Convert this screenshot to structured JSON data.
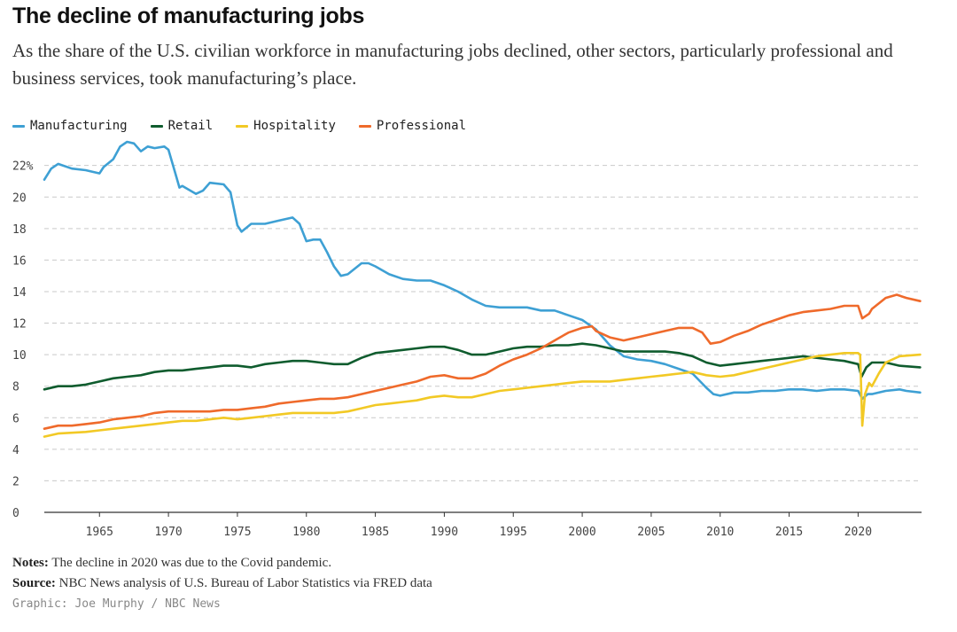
{
  "header": {
    "title": "The decline of manufacturing jobs",
    "subtitle": "As the share of the U.S. civilian workforce in manufacturing jobs declined, other sectors, particularly professional and business services, took manufacturing’s place."
  },
  "footer": {
    "notes_label": "Notes:",
    "notes_text": "The decline in 2020 was due to the Covid pandemic.",
    "source_label": "Source:",
    "source_text": "NBC News analysis of U.S. Bureau of Labor Statistics via FRED data",
    "credit": "Graphic: Joe Murphy / NBC News"
  },
  "chart_data": {
    "type": "line",
    "title": "The decline of manufacturing jobs",
    "xlabel": "",
    "ylabel": "",
    "xlim": [
      1961,
      2024.6
    ],
    "ylim": [
      0,
      23.5
    ],
    "x_ticks": [
      1965,
      1970,
      1975,
      1980,
      1985,
      1990,
      1995,
      2000,
      2005,
      2010,
      2015,
      2020
    ],
    "y_ticks": [
      0,
      2,
      4,
      6,
      8,
      10,
      12,
      14,
      16,
      18,
      20,
      22
    ],
    "y_tick_labels": [
      "0",
      "2",
      "4",
      "6",
      "8",
      "10",
      "12",
      "14",
      "16",
      "18",
      "20",
      "22%"
    ],
    "grid": "horizontal dashed",
    "legend_placement": "top-left",
    "series": [
      {
        "name": "Manufacturing",
        "color": "#3ea0d4",
        "points": [
          [
            1961.0,
            21.1
          ],
          [
            1961.5,
            21.8
          ],
          [
            1962.0,
            22.1
          ],
          [
            1963.0,
            21.8
          ],
          [
            1964.0,
            21.7
          ],
          [
            1965.0,
            21.5
          ],
          [
            1965.3,
            21.9
          ],
          [
            1966.0,
            22.4
          ],
          [
            1966.5,
            23.2
          ],
          [
            1967.0,
            23.5
          ],
          [
            1967.5,
            23.4
          ],
          [
            1968.0,
            22.9
          ],
          [
            1968.5,
            23.2
          ],
          [
            1969.0,
            23.1
          ],
          [
            1969.7,
            23.2
          ],
          [
            1970.0,
            23.0
          ],
          [
            1970.5,
            21.5
          ],
          [
            1970.8,
            20.6
          ],
          [
            1971.0,
            20.7
          ],
          [
            1972.0,
            20.2
          ],
          [
            1972.5,
            20.4
          ],
          [
            1973.0,
            20.9
          ],
          [
            1974.0,
            20.8
          ],
          [
            1974.5,
            20.3
          ],
          [
            1975.0,
            18.2
          ],
          [
            1975.3,
            17.8
          ],
          [
            1976.0,
            18.3
          ],
          [
            1977.0,
            18.3
          ],
          [
            1978.0,
            18.5
          ],
          [
            1979.0,
            18.7
          ],
          [
            1979.5,
            18.3
          ],
          [
            1980.0,
            17.2
          ],
          [
            1980.5,
            17.3
          ],
          [
            1981.0,
            17.3
          ],
          [
            1981.5,
            16.5
          ],
          [
            1982.0,
            15.6
          ],
          [
            1982.5,
            15.0
          ],
          [
            1983.0,
            15.1
          ],
          [
            1984.0,
            15.8
          ],
          [
            1984.5,
            15.8
          ],
          [
            1985.0,
            15.6
          ],
          [
            1986.0,
            15.1
          ],
          [
            1987.0,
            14.8
          ],
          [
            1988.0,
            14.7
          ],
          [
            1989.0,
            14.7
          ],
          [
            1990.0,
            14.4
          ],
          [
            1991.0,
            14.0
          ],
          [
            1992.0,
            13.5
          ],
          [
            1993.0,
            13.1
          ],
          [
            1994.0,
            13.0
          ],
          [
            1995.0,
            13.0
          ],
          [
            1996.0,
            13.0
          ],
          [
            1997.0,
            12.8
          ],
          [
            1998.0,
            12.8
          ],
          [
            1999.0,
            12.5
          ],
          [
            2000.0,
            12.2
          ],
          [
            2001.0,
            11.6
          ],
          [
            2002.0,
            10.6
          ],
          [
            2003.0,
            9.9
          ],
          [
            2004.0,
            9.7
          ],
          [
            2005.0,
            9.6
          ],
          [
            2006.0,
            9.4
          ],
          [
            2007.0,
            9.1
          ],
          [
            2008.0,
            8.8
          ],
          [
            2009.0,
            7.9
          ],
          [
            2009.5,
            7.5
          ],
          [
            2010.0,
            7.4
          ],
          [
            2011.0,
            7.6
          ],
          [
            2012.0,
            7.6
          ],
          [
            2013.0,
            7.7
          ],
          [
            2014.0,
            7.7
          ],
          [
            2015.0,
            7.8
          ],
          [
            2016.0,
            7.8
          ],
          [
            2017.0,
            7.7
          ],
          [
            2018.0,
            7.8
          ],
          [
            2019.0,
            7.8
          ],
          [
            2020.0,
            7.7
          ],
          [
            2020.3,
            7.2
          ],
          [
            2020.7,
            7.5
          ],
          [
            2021.0,
            7.5
          ],
          [
            2022.0,
            7.7
          ],
          [
            2023.0,
            7.8
          ],
          [
            2023.5,
            7.7
          ],
          [
            2024.5,
            7.6
          ]
        ]
      },
      {
        "name": "Retail",
        "color": "#0f5c2e",
        "points": [
          [
            1961.0,
            7.8
          ],
          [
            1962.0,
            8.0
          ],
          [
            1963.0,
            8.0
          ],
          [
            1964.0,
            8.1
          ],
          [
            1965.0,
            8.3
          ],
          [
            1966.0,
            8.5
          ],
          [
            1967.0,
            8.6
          ],
          [
            1968.0,
            8.7
          ],
          [
            1969.0,
            8.9
          ],
          [
            1970.0,
            9.0
          ],
          [
            1971.0,
            9.0
          ],
          [
            1972.0,
            9.1
          ],
          [
            1973.0,
            9.2
          ],
          [
            1974.0,
            9.3
          ],
          [
            1975.0,
            9.3
          ],
          [
            1976.0,
            9.2
          ],
          [
            1977.0,
            9.4
          ],
          [
            1978.0,
            9.5
          ],
          [
            1979.0,
            9.6
          ],
          [
            1980.0,
            9.6
          ],
          [
            1981.0,
            9.5
          ],
          [
            1982.0,
            9.4
          ],
          [
            1983.0,
            9.4
          ],
          [
            1984.0,
            9.8
          ],
          [
            1985.0,
            10.1
          ],
          [
            1986.0,
            10.2
          ],
          [
            1987.0,
            10.3
          ],
          [
            1988.0,
            10.4
          ],
          [
            1989.0,
            10.5
          ],
          [
            1990.0,
            10.5
          ],
          [
            1991.0,
            10.3
          ],
          [
            1992.0,
            10.0
          ],
          [
            1993.0,
            10.0
          ],
          [
            1994.0,
            10.2
          ],
          [
            1995.0,
            10.4
          ],
          [
            1996.0,
            10.5
          ],
          [
            1997.0,
            10.5
          ],
          [
            1998.0,
            10.6
          ],
          [
            1999.0,
            10.6
          ],
          [
            2000.0,
            10.7
          ],
          [
            2001.0,
            10.6
          ],
          [
            2002.0,
            10.4
          ],
          [
            2003.0,
            10.2
          ],
          [
            2004.0,
            10.2
          ],
          [
            2005.0,
            10.2
          ],
          [
            2006.0,
            10.2
          ],
          [
            2007.0,
            10.1
          ],
          [
            2008.0,
            9.9
          ],
          [
            2009.0,
            9.5
          ],
          [
            2010.0,
            9.3
          ],
          [
            2011.0,
            9.4
          ],
          [
            2012.0,
            9.5
          ],
          [
            2013.0,
            9.6
          ],
          [
            2014.0,
            9.7
          ],
          [
            2015.0,
            9.8
          ],
          [
            2016.0,
            9.9
          ],
          [
            2017.0,
            9.8
          ],
          [
            2018.0,
            9.7
          ],
          [
            2019.0,
            9.6
          ],
          [
            2020.0,
            9.4
          ],
          [
            2020.25,
            8.6
          ],
          [
            2020.6,
            9.2
          ],
          [
            2021.0,
            9.5
          ],
          [
            2022.0,
            9.5
          ],
          [
            2023.0,
            9.3
          ],
          [
            2024.5,
            9.2
          ]
        ]
      },
      {
        "name": "Hospitality",
        "color": "#f2c925",
        "points": [
          [
            1961.0,
            4.8
          ],
          [
            1962.0,
            5.0
          ],
          [
            1964.0,
            5.1
          ],
          [
            1965.0,
            5.2
          ],
          [
            1966.0,
            5.3
          ],
          [
            1967.0,
            5.4
          ],
          [
            1968.0,
            5.5
          ],
          [
            1969.0,
            5.6
          ],
          [
            1970.0,
            5.7
          ],
          [
            1971.0,
            5.8
          ],
          [
            1972.0,
            5.8
          ],
          [
            1973.0,
            5.9
          ],
          [
            1974.0,
            6.0
          ],
          [
            1975.0,
            5.9
          ],
          [
            1976.0,
            6.0
          ],
          [
            1977.0,
            6.1
          ],
          [
            1978.0,
            6.2
          ],
          [
            1979.0,
            6.3
          ],
          [
            1980.0,
            6.3
          ],
          [
            1981.0,
            6.3
          ],
          [
            1982.0,
            6.3
          ],
          [
            1983.0,
            6.4
          ],
          [
            1984.0,
            6.6
          ],
          [
            1985.0,
            6.8
          ],
          [
            1986.0,
            6.9
          ],
          [
            1987.0,
            7.0
          ],
          [
            1988.0,
            7.1
          ],
          [
            1989.0,
            7.3
          ],
          [
            1990.0,
            7.4
          ],
          [
            1991.0,
            7.3
          ],
          [
            1992.0,
            7.3
          ],
          [
            1993.0,
            7.5
          ],
          [
            1994.0,
            7.7
          ],
          [
            1995.0,
            7.8
          ],
          [
            1996.0,
            7.9
          ],
          [
            1997.0,
            8.0
          ],
          [
            1998.0,
            8.1
          ],
          [
            1999.0,
            8.2
          ],
          [
            2000.0,
            8.3
          ],
          [
            2001.0,
            8.3
          ],
          [
            2002.0,
            8.3
          ],
          [
            2003.0,
            8.4
          ],
          [
            2004.0,
            8.5
          ],
          [
            2005.0,
            8.6
          ],
          [
            2006.0,
            8.7
          ],
          [
            2007.0,
            8.8
          ],
          [
            2008.0,
            8.9
          ],
          [
            2009.0,
            8.7
          ],
          [
            2010.0,
            8.6
          ],
          [
            2011.0,
            8.7
          ],
          [
            2012.0,
            8.9
          ],
          [
            2013.0,
            9.1
          ],
          [
            2014.0,
            9.3
          ],
          [
            2015.0,
            9.5
          ],
          [
            2016.0,
            9.7
          ],
          [
            2017.0,
            9.9
          ],
          [
            2018.0,
            10.0
          ],
          [
            2019.0,
            10.1
          ],
          [
            2020.0,
            10.1
          ],
          [
            2020.15,
            10.0
          ],
          [
            2020.3,
            5.5
          ],
          [
            2020.5,
            7.5
          ],
          [
            2020.8,
            8.2
          ],
          [
            2021.0,
            8.0
          ],
          [
            2021.5,
            8.8
          ],
          [
            2022.0,
            9.5
          ],
          [
            2023.0,
            9.9
          ],
          [
            2024.5,
            10.0
          ]
        ]
      },
      {
        "name": "Professional",
        "color": "#ef6a2b",
        "points": [
          [
            1961.0,
            5.3
          ],
          [
            1962.0,
            5.5
          ],
          [
            1963.0,
            5.5
          ],
          [
            1964.0,
            5.6
          ],
          [
            1965.0,
            5.7
          ],
          [
            1966.0,
            5.9
          ],
          [
            1967.0,
            6.0
          ],
          [
            1968.0,
            6.1
          ],
          [
            1969.0,
            6.3
          ],
          [
            1970.0,
            6.4
          ],
          [
            1971.0,
            6.4
          ],
          [
            1972.0,
            6.4
          ],
          [
            1973.0,
            6.4
          ],
          [
            1974.0,
            6.5
          ],
          [
            1975.0,
            6.5
          ],
          [
            1976.0,
            6.6
          ],
          [
            1977.0,
            6.7
          ],
          [
            1978.0,
            6.9
          ],
          [
            1979.0,
            7.0
          ],
          [
            1980.0,
            7.1
          ],
          [
            1981.0,
            7.2
          ],
          [
            1982.0,
            7.2
          ],
          [
            1983.0,
            7.3
          ],
          [
            1984.0,
            7.5
          ],
          [
            1985.0,
            7.7
          ],
          [
            1986.0,
            7.9
          ],
          [
            1987.0,
            8.1
          ],
          [
            1988.0,
            8.3
          ],
          [
            1989.0,
            8.6
          ],
          [
            1990.0,
            8.7
          ],
          [
            1991.0,
            8.5
          ],
          [
            1992.0,
            8.5
          ],
          [
            1993.0,
            8.8
          ],
          [
            1994.0,
            9.3
          ],
          [
            1995.0,
            9.7
          ],
          [
            1996.0,
            10.0
          ],
          [
            1997.0,
            10.4
          ],
          [
            1998.0,
            10.9
          ],
          [
            1999.0,
            11.4
          ],
          [
            2000.0,
            11.7
          ],
          [
            2000.7,
            11.8
          ],
          [
            2001.0,
            11.5
          ],
          [
            2002.0,
            11.1
          ],
          [
            2003.0,
            10.9
          ],
          [
            2004.0,
            11.1
          ],
          [
            2005.0,
            11.3
          ],
          [
            2006.0,
            11.5
          ],
          [
            2007.0,
            11.7
          ],
          [
            2008.0,
            11.7
          ],
          [
            2008.7,
            11.4
          ],
          [
            2009.3,
            10.7
          ],
          [
            2010.0,
            10.8
          ],
          [
            2011.0,
            11.2
          ],
          [
            2012.0,
            11.5
          ],
          [
            2013.0,
            11.9
          ],
          [
            2014.0,
            12.2
          ],
          [
            2015.0,
            12.5
          ],
          [
            2016.0,
            12.7
          ],
          [
            2017.0,
            12.8
          ],
          [
            2018.0,
            12.9
          ],
          [
            2019.0,
            13.1
          ],
          [
            2020.0,
            13.1
          ],
          [
            2020.3,
            12.3
          ],
          [
            2020.8,
            12.6
          ],
          [
            2021.0,
            12.9
          ],
          [
            2022.0,
            13.6
          ],
          [
            2022.8,
            13.8
          ],
          [
            2023.5,
            13.6
          ],
          [
            2024.5,
            13.4
          ]
        ]
      }
    ]
  }
}
